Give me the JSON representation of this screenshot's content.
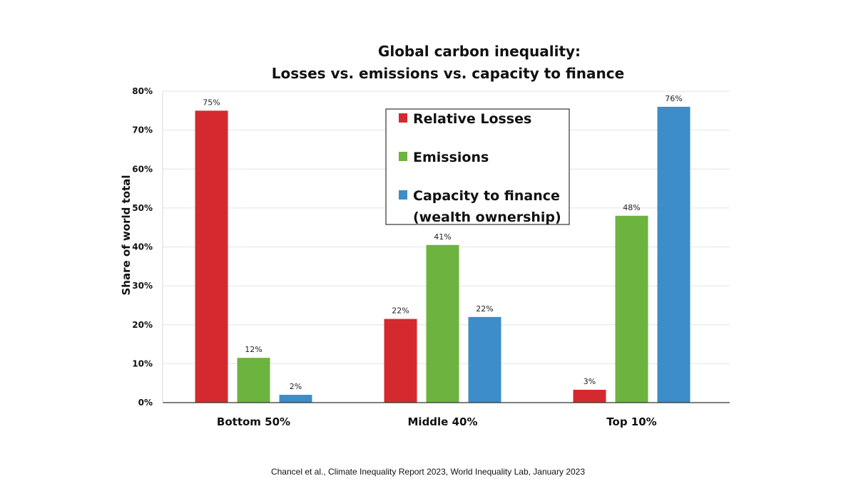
{
  "chart_data": {
    "type": "bar",
    "title": [
      "Global carbon inequality:",
      "Losses vs. emissions vs. capacity to finance"
    ],
    "ylabel": "Share of world total",
    "xlabel": "",
    "categories": [
      "Bottom 50%",
      "Middle 40%",
      "Top 10%"
    ],
    "ylim": [
      0,
      80
    ],
    "yticks": [
      0,
      10,
      20,
      30,
      40,
      50,
      60,
      70,
      80
    ],
    "ytick_labels": [
      "0%",
      "10%",
      "20%",
      "30%",
      "40%",
      "50%",
      "60%",
      "70%",
      "80%"
    ],
    "grid": true,
    "legend_position": "top-center",
    "series": [
      {
        "name": "Relative Losses",
        "color": "#d42a2f",
        "values": [
          75,
          21.5,
          3.3
        ],
        "labels": [
          "75%",
          "22%",
          "3%"
        ]
      },
      {
        "name": "Emissions",
        "color": "#6db33f",
        "values": [
          11.5,
          40.5,
          48
        ],
        "labels": [
          "12%",
          "41%",
          "48%"
        ]
      },
      {
        "name": "Capacity to finance\n(wealth ownership)",
        "color": "#3c8dc9",
        "values": [
          2,
          22,
          76
        ],
        "labels": [
          "2%",
          "22%",
          "76%"
        ]
      }
    ]
  },
  "source_note": "Chancel et al., Climate Inequality Report 2023, World Inequality Lab, January 2023"
}
